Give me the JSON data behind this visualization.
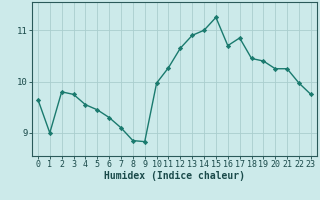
{
  "xlabel": "Humidex (Indice chaleur)",
  "x_values": [
    0,
    1,
    2,
    3,
    4,
    5,
    6,
    7,
    8,
    9,
    10,
    11,
    12,
    13,
    14,
    15,
    16,
    17,
    18,
    19,
    20,
    21,
    22,
    23
  ],
  "y_values": [
    9.65,
    9.0,
    9.8,
    9.75,
    9.55,
    9.45,
    9.3,
    9.1,
    8.85,
    8.83,
    9.97,
    10.27,
    10.65,
    10.9,
    11.0,
    11.25,
    10.7,
    10.85,
    10.45,
    10.4,
    10.25,
    10.25,
    9.97,
    9.75
  ],
  "line_color": "#1a7a6e",
  "marker": "D",
  "marker_size": 2.2,
  "bg_color": "#cceaea",
  "grid_color": "#aacece",
  "axis_color": "#2a5a5a",
  "text_color": "#1a4a4a",
  "ylim": [
    8.55,
    11.55
  ],
  "yticks": [
    9,
    10,
    11
  ],
  "xlim": [
    -0.5,
    23.5
  ],
  "tick_fontsize": 6.0,
  "xlabel_fontsize": 7.0
}
